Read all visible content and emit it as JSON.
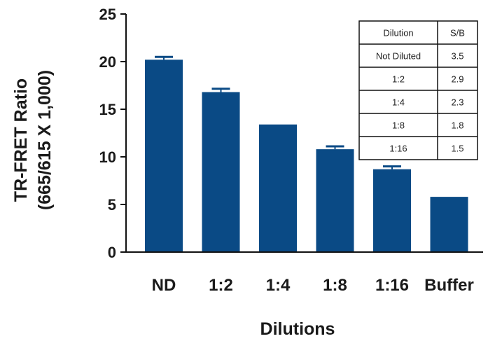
{
  "chart_data": {
    "type": "bar",
    "categories": [
      "ND",
      "1:2",
      "1:4",
      "1:8",
      "1:16",
      "Buffer"
    ],
    "values": [
      20.2,
      16.8,
      13.4,
      10.8,
      8.7,
      5.8
    ],
    "errors": [
      0.3,
      0.35,
      0,
      0.3,
      0.3,
      0
    ],
    "ylabel_lines": [
      "TR-FRET Ratio",
      "(665/615 X 1,000)"
    ],
    "xlabel": "Dilutions",
    "ylim": [
      0,
      25
    ],
    "yticks": [
      0,
      5,
      10,
      15,
      20,
      25
    ],
    "grid": false,
    "bar_color": "#0a4a85",
    "table": {
      "headers": [
        "Dilution",
        "S/B"
      ],
      "rows": [
        [
          "Not Diluted",
          "3.5"
        ],
        [
          "1:2",
          "2.9"
        ],
        [
          "1:4",
          "2.3"
        ],
        [
          "1:8",
          "1.8"
        ],
        [
          "1:16",
          "1.5"
        ]
      ],
      "placement": "top-right"
    }
  }
}
